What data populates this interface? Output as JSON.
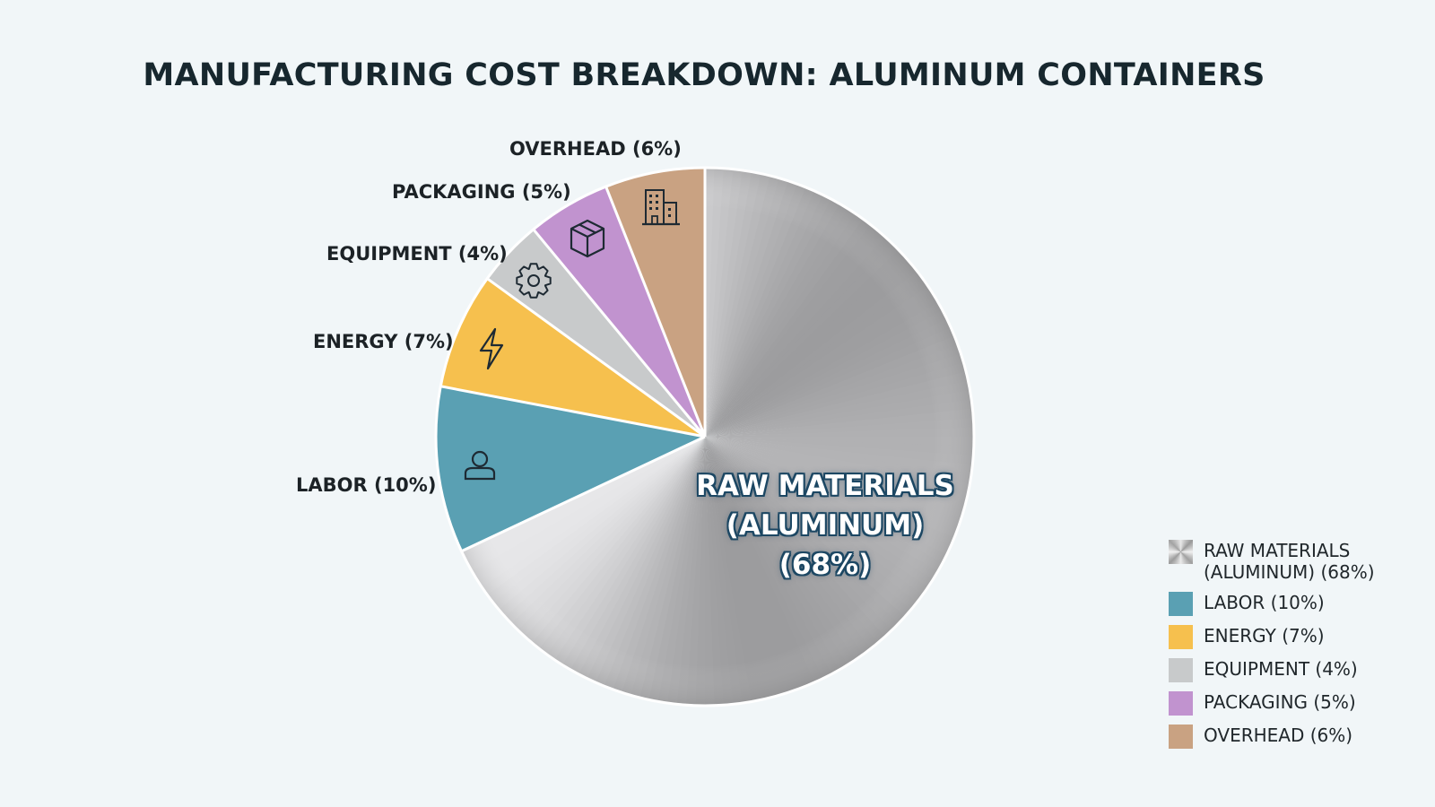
{
  "title": "MANUFACTURING COST BREAKDOWN: ALUMINUM CONTAINERS",
  "pie": {
    "center_label": [
      "RAW MATERIALS",
      "(ALUMINUM)",
      "(68%)"
    ],
    "callouts": [
      {
        "key": "labor",
        "text": "LABOR (10%)"
      },
      {
        "key": "energy",
        "text": "ENERGY (7%)"
      },
      {
        "key": "equipment",
        "text": "EQUIPMENT (4%)"
      },
      {
        "key": "packaging",
        "text": "PACKAGING (5%)"
      },
      {
        "key": "overhead",
        "text": "OVERHEAD (6%)"
      }
    ]
  },
  "legend": [
    {
      "key": "raw",
      "text": "RAW MATERIALS (ALUMINUM) (68%)",
      "color": "#b8b8b8"
    },
    {
      "key": "labor",
      "text": "LABOR (10%)",
      "color": "#5aa0b3"
    },
    {
      "key": "energy",
      "text": "ENERGY (7%)",
      "color": "#f6c04e"
    },
    {
      "key": "equipment",
      "text": "EQUIPMENT (4%)",
      "color": "#c8cacb"
    },
    {
      "key": "packaging",
      "text": "PACKAGING (5%)",
      "color": "#c193cf"
    },
    {
      "key": "overhead",
      "text": "OVERHEAD (6%)",
      "color": "#c9a282"
    }
  ],
  "chart_data": {
    "type": "pie",
    "title": "MANUFACTURING COST BREAKDOWN: ALUMINUM CONTAINERS",
    "categories": [
      "Raw Materials (Aluminum)",
      "Labor",
      "Energy",
      "Equipment",
      "Packaging",
      "Overhead"
    ],
    "values": [
      68,
      10,
      7,
      4,
      5,
      6
    ],
    "unit": "%",
    "colors": [
      "#b8b8b8",
      "#5aa0b3",
      "#f6c04e",
      "#c8cacb",
      "#c193cf",
      "#c9a282"
    ],
    "icons": [
      "none",
      "person-icon",
      "lightning-icon",
      "gear-icon",
      "box-icon",
      "building-icon"
    ],
    "start_angle": "12 o'clock, clockwise",
    "legend_position": "bottom-right",
    "xlabel": "",
    "ylabel": ""
  }
}
